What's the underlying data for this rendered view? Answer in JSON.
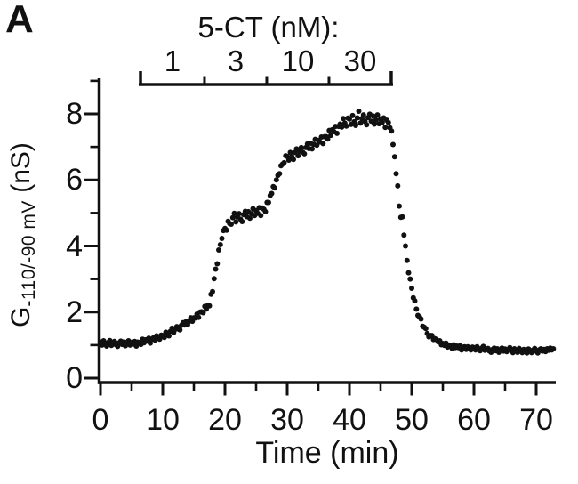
{
  "panel_label": "A",
  "colors": {
    "background": "#ffffff",
    "axis": "#111111",
    "text": "#111111",
    "marker": "#111111"
  },
  "chart_data": {
    "type": "scatter",
    "title": "5-CT (nM):",
    "xlabel": "Time (min)",
    "ylabel": {
      "prefix": "G",
      "subscript": "-110/-90 mV",
      "suffix": "(nS)"
    },
    "xlim": [
      0,
      73.3
    ],
    "ylim": [
      0,
      9
    ],
    "x_major_ticks": [
      0,
      10,
      20,
      30,
      40,
      50,
      60,
      70
    ],
    "x_minor_ticks": [
      5,
      15,
      25,
      35,
      45,
      55,
      65
    ],
    "y_major_ticks": [
      0,
      2,
      4,
      6,
      8
    ],
    "y_minor_ticks": [
      1,
      3,
      5,
      7,
      9
    ],
    "grid": false,
    "legend": null,
    "marker": {
      "shape": "circle",
      "color": "#111111",
      "radius_px": 3
    },
    "dose_bracket": {
      "title": "5-CT (nM):",
      "t_start": 6.43,
      "t_end": 46.71,
      "segments": [
        {
          "label": "1",
          "t_start": 6.43,
          "t_end": 16.71
        },
        {
          "label": "3",
          "t_start": 16.71,
          "t_end": 26.71
        },
        {
          "label": "10",
          "t_start": 26.71,
          "t_end": 36.71
        },
        {
          "label": "30",
          "t_start": 36.71,
          "t_end": 46.71
        }
      ]
    },
    "points": [
      [
        0,
        1.09
      ],
      [
        0.25,
        1.0
      ],
      [
        0.5,
        1.13
      ],
      [
        0.75,
        1.03
      ],
      [
        1,
        0.97
      ],
      [
        1.25,
        1.08
      ],
      [
        1.5,
        1.14
      ],
      [
        1.75,
        0.99
      ],
      [
        2,
        1.06
      ],
      [
        2.25,
        1.11
      ],
      [
        2.5,
        1.01
      ],
      [
        2.75,
        0.96
      ],
      [
        3,
        1.07
      ],
      [
        3.25,
        1.12
      ],
      [
        3.5,
        1.02
      ],
      [
        3.75,
        1.1
      ],
      [
        4,
        0.98
      ],
      [
        4.25,
        1.05
      ],
      [
        4.5,
        1.13
      ],
      [
        4.75,
        1.0
      ],
      [
        5,
        1.08
      ],
      [
        5.25,
        1.03
      ],
      [
        5.5,
        1.11
      ],
      [
        5.75,
        0.97
      ],
      [
        6,
        1.09
      ],
      [
        6.25,
        1.07
      ],
      [
        6.5,
        1.02
      ],
      [
        6.75,
        1.18
      ],
      [
        7,
        1.07
      ],
      [
        7.25,
        1.16
      ],
      [
        7.5,
        1.12
      ],
      [
        7.75,
        1.21
      ],
      [
        8,
        1.06
      ],
      [
        8.25,
        1.18
      ],
      [
        8.5,
        1.22
      ],
      [
        8.75,
        1.15
      ],
      [
        9,
        1.28
      ],
      [
        9.25,
        1.21
      ],
      [
        9.5,
        1.18
      ],
      [
        9.75,
        1.3
      ],
      [
        10,
        1.29
      ],
      [
        10.25,
        1.23
      ],
      [
        10.5,
        1.39
      ],
      [
        10.75,
        1.31
      ],
      [
        11,
        1.28
      ],
      [
        11.25,
        1.42
      ],
      [
        11.5,
        1.51
      ],
      [
        11.75,
        1.38
      ],
      [
        12,
        1.48
      ],
      [
        12.25,
        1.56
      ],
      [
        12.5,
        1.49
      ],
      [
        12.75,
        1.46
      ],
      [
        13,
        1.6
      ],
      [
        13.25,
        1.68
      ],
      [
        13.5,
        1.61
      ],
      [
        13.75,
        1.71
      ],
      [
        14,
        1.62
      ],
      [
        14.25,
        1.72
      ],
      [
        14.5,
        1.83
      ],
      [
        14.75,
        1.72
      ],
      [
        15,
        1.83
      ],
      [
        15.25,
        1.82
      ],
      [
        15.5,
        1.94
      ],
      [
        15.75,
        1.84
      ],
      [
        16,
        2.0
      ],
      [
        16.25,
        2.01
      ],
      [
        16.5,
        1.98
      ],
      [
        16.75,
        2.17
      ],
      [
        17,
        2.09
      ],
      [
        17.25,
        2.21
      ],
      [
        17.5,
        2.19
      ],
      [
        17.75,
        2.54
      ],
      [
        18,
        2.62
      ],
      [
        18.25,
        3.01
      ],
      [
        18.5,
        3.3
      ],
      [
        18.75,
        3.46
      ],
      [
        19,
        3.88
      ],
      [
        19.25,
        4.04
      ],
      [
        19.5,
        4.23
      ],
      [
        19.75,
        4.47
      ],
      [
        20,
        4.53
      ],
      [
        20.25,
        4.48
      ],
      [
        20.5,
        4.75
      ],
      [
        20.75,
        4.68
      ],
      [
        21,
        4.66
      ],
      [
        21.25,
        4.86
      ],
      [
        21.5,
        4.99
      ],
      [
        21.75,
        4.73
      ],
      [
        22,
        4.88
      ],
      [
        22.25,
        4.98
      ],
      [
        22.5,
        4.81
      ],
      [
        22.75,
        4.74
      ],
      [
        23,
        4.95
      ],
      [
        23.25,
        5.05
      ],
      [
        23.5,
        4.89
      ],
      [
        23.75,
        5.04
      ],
      [
        24,
        4.84
      ],
      [
        24.25,
        4.98
      ],
      [
        24.5,
        5.13
      ],
      [
        24.75,
        4.92
      ],
      [
        25,
        5.07
      ],
      [
        25.25,
        4.99
      ],
      [
        25.5,
        5.16
      ],
      [
        25.75,
        4.92
      ],
      [
        26,
        5.15
      ],
      [
        26.25,
        5.11
      ],
      [
        26.5,
        5.04
      ],
      [
        26.75,
        5.32
      ],
      [
        27,
        5.32
      ],
      [
        27.25,
        5.53
      ],
      [
        27.5,
        5.59
      ],
      [
        27.75,
        5.8
      ],
      [
        28,
        5.76
      ],
      [
        28.25,
        6.0
      ],
      [
        28.5,
        6.14
      ],
      [
        28.75,
        6.19
      ],
      [
        29,
        6.43
      ],
      [
        29.25,
        6.48
      ],
      [
        29.5,
        6.52
      ],
      [
        29.75,
        6.73
      ],
      [
        30,
        6.71
      ],
      [
        30.25,
        6.6
      ],
      [
        30.5,
        6.83
      ],
      [
        30.75,
        6.7
      ],
      [
        31,
        6.62
      ],
      [
        31.25,
        6.83
      ],
      [
        31.5,
        6.94
      ],
      [
        31.75,
        6.73
      ],
      [
        32,
        6.87
      ],
      [
        32.25,
        6.98
      ],
      [
        32.5,
        6.84
      ],
      [
        32.75,
        6.79
      ],
      [
        33,
        6.98
      ],
      [
        33.25,
        7.09
      ],
      [
        33.5,
        6.95
      ],
      [
        33.75,
        7.11
      ],
      [
        34,
        6.94
      ],
      [
        34.25,
        7.08
      ],
      [
        34.5,
        7.23
      ],
      [
        34.75,
        7.05
      ],
      [
        35,
        7.2
      ],
      [
        35.25,
        7.15
      ],
      [
        35.5,
        7.3
      ],
      [
        35.75,
        7.1
      ],
      [
        36,
        7.31
      ],
      [
        36.25,
        7.31
      ],
      [
        36.5,
        7.24
      ],
      [
        36.75,
        7.5
      ],
      [
        37,
        7.35
      ],
      [
        37.25,
        7.52
      ],
      [
        37.5,
        7.46
      ],
      [
        37.75,
        7.62
      ],
      [
        38,
        7.41
      ],
      [
        38.25,
        7.62
      ],
      [
        38.5,
        7.69
      ],
      [
        38.75,
        7.6
      ],
      [
        39,
        7.86
      ],
      [
        39.25,
        7.72
      ],
      [
        39.5,
        7.63
      ],
      [
        39.75,
        7.87
      ],
      [
        40,
        7.84
      ],
      [
        40.25,
        7.68
      ],
      [
        40.5,
        7.95
      ],
      [
        40.75,
        7.76
      ],
      [
        41,
        7.65
      ],
      [
        41.25,
        7.88
      ],
      [
        41.5,
        8.08
      ],
      [
        41.75,
        7.72
      ],
      [
        42,
        7.86
      ],
      [
        42.25,
        7.97
      ],
      [
        42.5,
        7.77
      ],
      [
        42.75,
        7.67
      ],
      [
        43,
        7.89
      ],
      [
        43.25,
        7.99
      ],
      [
        43.5,
        7.78
      ],
      [
        43.75,
        7.94
      ],
      [
        44,
        7.69
      ],
      [
        44.25,
        7.82
      ],
      [
        44.5,
        7.97
      ],
      [
        44.75,
        7.7
      ],
      [
        45,
        7.85
      ],
      [
        45.25,
        7.74
      ],
      [
        45.5,
        7.88
      ],
      [
        45.75,
        7.59
      ],
      [
        46,
        7.81
      ],
      [
        46.25,
        7.74
      ],
      [
        46.5,
        7.58
      ],
      [
        46.75,
        7.48
      ],
      [
        47,
        7.07
      ],
      [
        47.25,
        6.7
      ],
      [
        47.5,
        6.19
      ],
      [
        47.75,
        5.82
      ],
      [
        48,
        5.21
      ],
      [
        48.25,
        4.87
      ],
      [
        48.5,
        4.88
      ],
      [
        48.75,
        4.33
      ],
      [
        49,
        4.0
      ],
      [
        49.25,
        3.56
      ],
      [
        49.5,
        3.19
      ],
      [
        49.75,
        3.0
      ],
      [
        50,
        2.72
      ],
      [
        50.25,
        2.43
      ],
      [
        50.5,
        2.34
      ],
      [
        50.75,
        2.09
      ],
      [
        51,
        1.9
      ],
      [
        51.25,
        1.85
      ],
      [
        51.5,
        1.79
      ],
      [
        51.75,
        1.57
      ],
      [
        52,
        1.54
      ],
      [
        52.25,
        1.5
      ],
      [
        52.5,
        1.35
      ],
      [
        52.75,
        1.25
      ],
      [
        53,
        1.29
      ],
      [
        53.25,
        1.29
      ],
      [
        53.5,
        1.17
      ],
      [
        53.75,
        1.19
      ],
      [
        54,
        1.16
      ],
      [
        54.25,
        1.1
      ],
      [
        54.5,
        1.13
      ],
      [
        54.75,
        1.01
      ],
      [
        55,
        1.05
      ],
      [
        55.25,
        0.99
      ],
      [
        55.5,
        1.06
      ],
      [
        55.75,
        0.94
      ],
      [
        56,
        1.0
      ],
      [
        56.25,
        0.97
      ],
      [
        56.5,
        0.9
      ],
      [
        56.75,
        1.01
      ],
      [
        57,
        0.92
      ],
      [
        57.25,
        0.97
      ],
      [
        57.5,
        0.92
      ],
      [
        57.75,
        0.98
      ],
      [
        58,
        0.85
      ],
      [
        58.25,
        0.94
      ],
      [
        58.5,
        0.95
      ],
      [
        58.75,
        0.87
      ],
      [
        59,
        0.95
      ],
      [
        59.25,
        0.89
      ],
      [
        59.5,
        0.85
      ],
      [
        59.75,
        0.94
      ],
      [
        60,
        0.92
      ],
      [
        60.25,
        0.85
      ],
      [
        60.5,
        0.95
      ],
      [
        60.75,
        0.87
      ],
      [
        61,
        0.83
      ],
      [
        61.25,
        0.91
      ],
      [
        61.5,
        0.96
      ],
      [
        61.75,
        0.84
      ],
      [
        62,
        0.87
      ],
      [
        62.25,
        0.9
      ],
      [
        62.5,
        0.82
      ],
      [
        62.75,
        0.78
      ],
      [
        63,
        0.87
      ],
      [
        63.25,
        0.91
      ],
      [
        63.5,
        0.83
      ],
      [
        63.75,
        0.89
      ],
      [
        64,
        0.78
      ],
      [
        64.25,
        0.85
      ],
      [
        64.5,
        0.91
      ],
      [
        64.75,
        0.82
      ],
      [
        65,
        0.88
      ],
      [
        65.25,
        0.8
      ],
      [
        65.5,
        0.86
      ],
      [
        65.75,
        0.92
      ],
      [
        66,
        0.83
      ],
      [
        66.25,
        0.77
      ],
      [
        66.5,
        0.89
      ],
      [
        66.75,
        0.85
      ],
      [
        67,
        0.78
      ],
      [
        67.25,
        0.9
      ],
      [
        67.5,
        0.84
      ],
      [
        67.75,
        0.77
      ],
      [
        68,
        0.87
      ],
      [
        68.25,
        0.82
      ],
      [
        68.5,
        0.76
      ],
      [
        68.75,
        0.88
      ],
      [
        69,
        0.83
      ],
      [
        69.25,
        0.77
      ],
      [
        69.5,
        0.85
      ],
      [
        69.75,
        0.9
      ],
      [
        70,
        0.81
      ],
      [
        70.25,
        0.76
      ],
      [
        70.5,
        0.86
      ],
      [
        70.75,
        0.89
      ],
      [
        71,
        0.82
      ],
      [
        71.25,
        0.87
      ],
      [
        71.5,
        0.8
      ],
      [
        71.75,
        0.89
      ],
      [
        72,
        0.84
      ],
      [
        72.25,
        0.91
      ],
      [
        72.5,
        0.85
      ],
      [
        72.75,
        0.89
      ]
    ]
  }
}
